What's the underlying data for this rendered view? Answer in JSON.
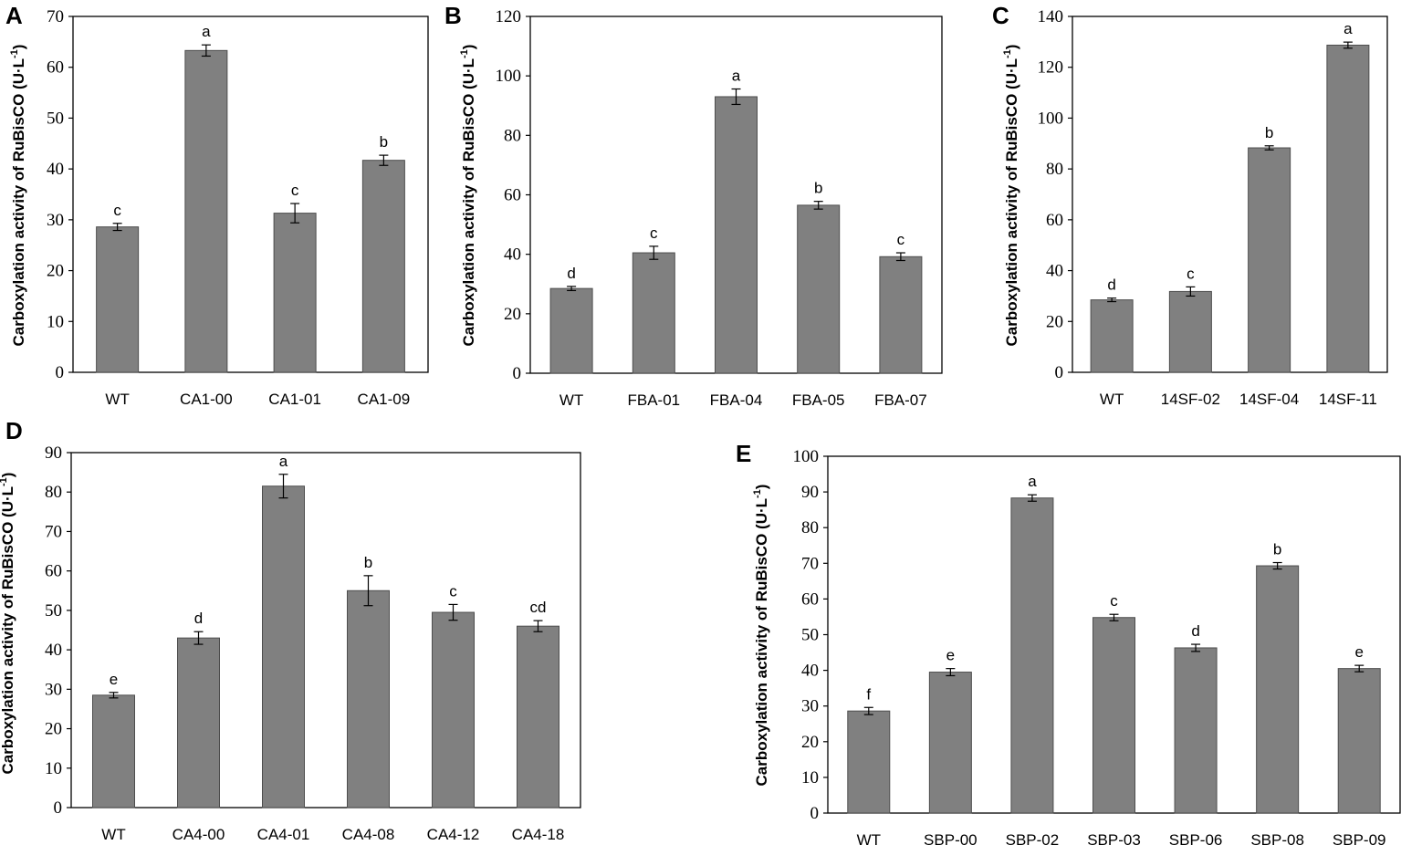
{
  "colors": {
    "bar": "#808080",
    "bar_edge": "#4d4d4d",
    "axis": "#000000",
    "background": "#ffffff"
  },
  "chart_data": [
    {
      "panel": "A",
      "type": "bar",
      "title": "",
      "xlabel": "",
      "ylabel": "Carboxylation activity of RuBisCO (U·L",
      "ylabel_sup": "-1",
      "ylabel_close": ")",
      "ylim": [
        0,
        70
      ],
      "ytick_step": 10,
      "categories": [
        "WT",
        "CA1-00",
        "CA1-01",
        "CA1-09"
      ],
      "values": [
        28.6,
        63.3,
        31.3,
        41.7
      ],
      "errors": [
        0.7,
        1.1,
        1.9,
        1.0
      ],
      "letters": [
        "c",
        "a",
        "c",
        "b"
      ]
    },
    {
      "panel": "B",
      "type": "bar",
      "title": "",
      "xlabel": "",
      "ylabel": "Carboxylation activity of RuBisCO (U·L",
      "ylabel_sup": "-1",
      "ylabel_close": ")",
      "ylim": [
        0,
        120
      ],
      "ytick_step": 20,
      "categories": [
        "WT",
        "FBA-01",
        "FBA-04",
        "FBA-05",
        "FBA-07"
      ],
      "values": [
        28.5,
        40.5,
        93.0,
        56.5,
        39.2
      ],
      "errors": [
        0.7,
        2.2,
        2.6,
        1.3,
        1.3
      ],
      "letters": [
        "d",
        "c",
        "a",
        "b",
        "c"
      ]
    },
    {
      "panel": "C",
      "type": "bar",
      "title": "",
      "xlabel": "",
      "ylabel": "Carboxylation activity of RuBisCO (U·L",
      "ylabel_sup": "-1",
      "ylabel_close": ")",
      "ylim": [
        0,
        140
      ],
      "ytick_step": 20,
      "categories": [
        "WT",
        "14SF-02",
        "14SF-04",
        "14SF-11"
      ],
      "values": [
        28.5,
        31.8,
        88.3,
        128.7
      ],
      "errors": [
        0.7,
        1.8,
        0.8,
        1.2
      ],
      "letters": [
        "d",
        "c",
        "b",
        "a"
      ]
    },
    {
      "panel": "D",
      "type": "bar",
      "title": "",
      "xlabel": "",
      "ylabel": "Carboxylation activity of RuBisCO (U·L",
      "ylabel_sup": "-1",
      "ylabel_close": ")",
      "ylim": [
        0,
        90
      ],
      "ytick_step": 10,
      "categories": [
        "WT",
        "CA4-00",
        "CA4-01",
        "CA4-08",
        "CA4-12",
        "CA4-18"
      ],
      "values": [
        28.5,
        43.0,
        81.5,
        55.0,
        49.5,
        46.0
      ],
      "errors": [
        0.7,
        1.6,
        3.0,
        3.8,
        2.0,
        1.4
      ],
      "letters": [
        "e",
        "d",
        "a",
        "b",
        "c",
        "cd"
      ]
    },
    {
      "panel": "E",
      "type": "bar",
      "title": "",
      "xlabel": "",
      "ylabel": "Carboxylation activity of RuBisCO (U·L",
      "ylabel_sup": "-1",
      "ylabel_close": ")",
      "ylim": [
        0,
        100
      ],
      "ytick_step": 10,
      "categories": [
        "WT",
        "SBP-00",
        "SBP-02",
        "SBP-03",
        "SBP-06",
        "SBP-08",
        "SBP-09"
      ],
      "values": [
        28.6,
        39.5,
        88.3,
        54.8,
        46.3,
        69.3,
        40.5
      ],
      "errors": [
        1.0,
        1.0,
        0.9,
        0.9,
        1.0,
        0.9,
        0.9
      ],
      "letters": [
        "f",
        "e",
        "a",
        "c",
        "d",
        "b",
        "e"
      ]
    }
  ]
}
